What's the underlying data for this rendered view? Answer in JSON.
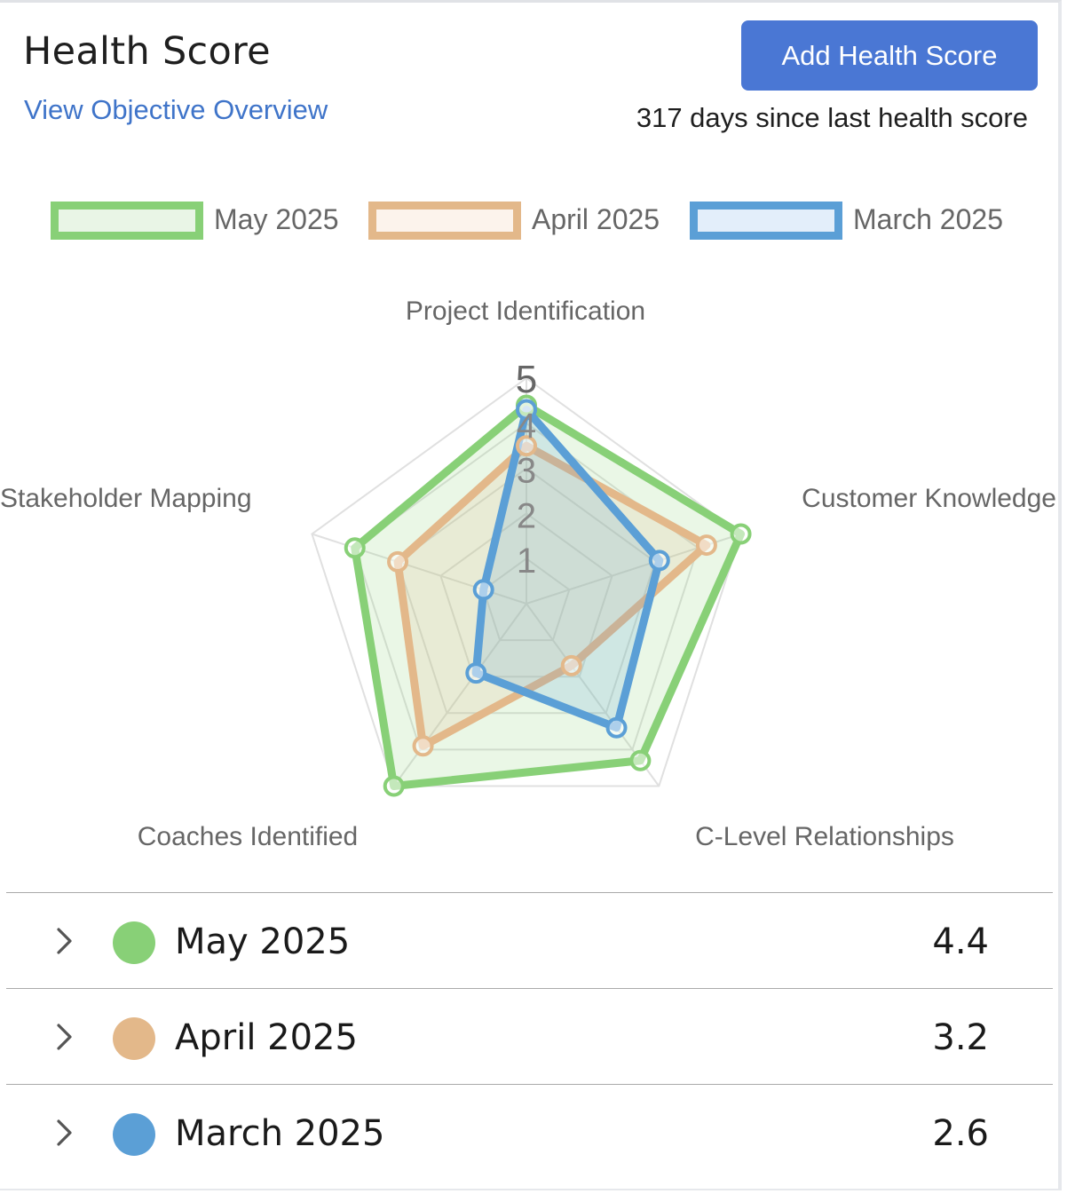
{
  "header": {
    "title": "Health Score",
    "overview_link": "View Objective Overview",
    "add_button": "Add Health Score",
    "days_since": "317 days since last health score"
  },
  "colors": {
    "accent": "#4a77d4",
    "link": "#3f74c9",
    "may": "#88d077",
    "april": "#e3b88a",
    "march": "#5b9fd6"
  },
  "chart_data": {
    "type": "radar",
    "axes": [
      "Project Identification",
      "Customer Knowledge",
      "C-Level Relationships",
      "Coaches Identified",
      "Stakeholder Mapping"
    ],
    "ticks": [
      "1",
      "2",
      "3",
      "4",
      "5"
    ],
    "range": [
      0,
      5
    ],
    "legend_position": "top",
    "series": [
      {
        "name": "May 2025",
        "values": [
          4.4,
          5.0,
          4.3,
          5.0,
          4.0
        ],
        "color": "#88d077"
      },
      {
        "name": "April 2025",
        "values": [
          3.5,
          4.2,
          1.7,
          3.9,
          3.0
        ],
        "color": "#e3b88a"
      },
      {
        "name": "March 2025",
        "values": [
          4.3,
          3.1,
          3.4,
          1.9,
          1.0
        ],
        "color": "#5b9fd6"
      }
    ]
  },
  "scores": [
    {
      "label": "May 2025",
      "score": "4.4",
      "color": "#88d077"
    },
    {
      "label": "April 2025",
      "score": "3.2",
      "color": "#e3b88a"
    },
    {
      "label": "March 2025",
      "score": "2.6",
      "color": "#5b9fd6"
    }
  ]
}
